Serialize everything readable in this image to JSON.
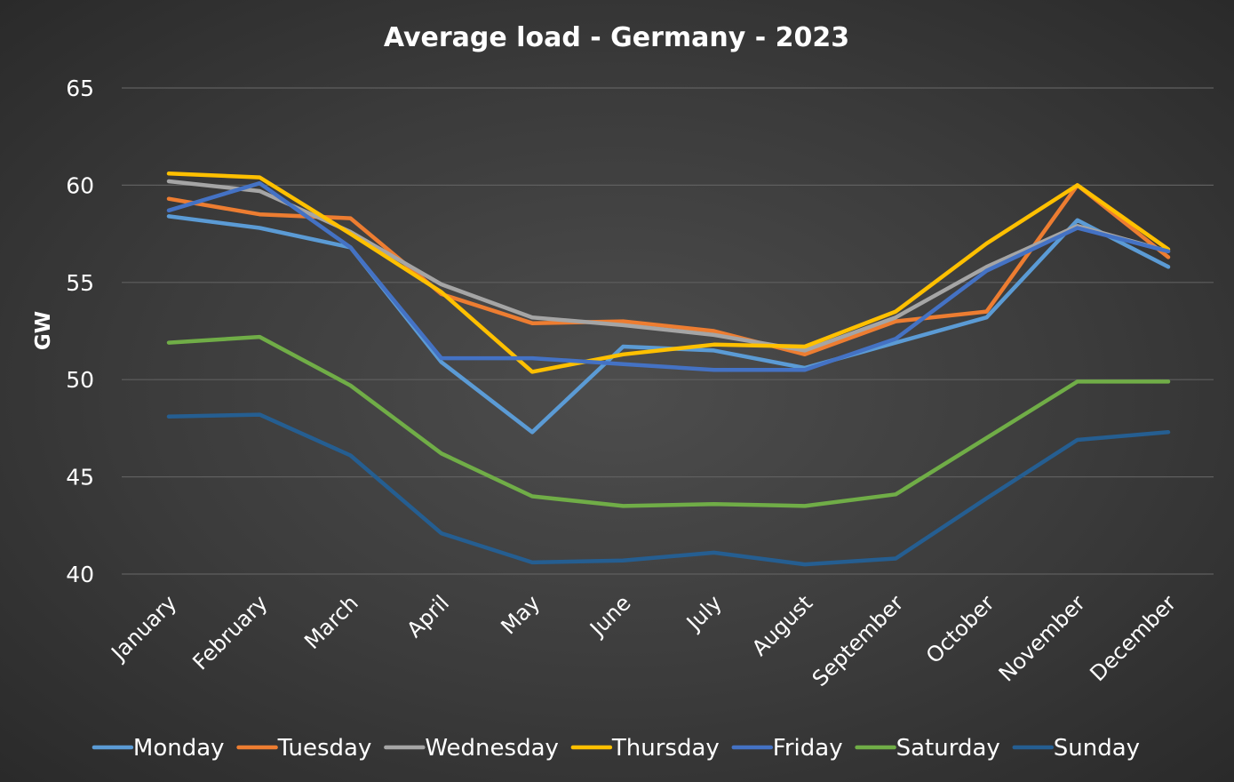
{
  "chart_data": {
    "type": "line",
    "title": "Average load - Germany - 2023",
    "xlabel": "",
    "ylabel": "GW",
    "ylim": [
      40,
      65
    ],
    "yticks": [
      40,
      45,
      50,
      55,
      60,
      65
    ],
    "grid": true,
    "legend_position": "bottom",
    "categories": [
      "January",
      "February",
      "March",
      "April",
      "May",
      "June",
      "July",
      "August",
      "September",
      "October",
      "November",
      "December"
    ],
    "series": [
      {
        "name": "Monday",
        "color": "#5b9bd5",
        "values": [
          58.4,
          57.8,
          56.8,
          50.9,
          47.3,
          51.7,
          51.5,
          50.6,
          51.9,
          53.2,
          58.2,
          55.8
        ]
      },
      {
        "name": "Tuesday",
        "color": "#ed7d31",
        "values": [
          59.3,
          58.5,
          58.3,
          54.4,
          52.9,
          53.0,
          52.5,
          51.3,
          53.0,
          53.5,
          60.0,
          56.3
        ]
      },
      {
        "name": "Wednesday",
        "color": "#a5a5a5",
        "values": [
          60.2,
          59.7,
          57.6,
          54.9,
          53.2,
          52.8,
          52.3,
          51.5,
          53.2,
          55.8,
          57.9,
          56.6
        ]
      },
      {
        "name": "Thursday",
        "color": "#ffc000",
        "values": [
          60.6,
          60.4,
          57.5,
          54.5,
          50.4,
          51.3,
          51.8,
          51.7,
          53.5,
          57.0,
          60.0,
          56.7
        ]
      },
      {
        "name": "Friday",
        "color": "#4472c4",
        "values": [
          58.7,
          60.1,
          56.8,
          51.1,
          51.1,
          50.8,
          50.5,
          50.5,
          52.1,
          55.6,
          57.8,
          56.6
        ]
      },
      {
        "name": "Saturday",
        "color": "#70ad47",
        "values": [
          51.9,
          52.2,
          49.7,
          46.2,
          44.0,
          43.5,
          43.6,
          43.5,
          44.1,
          47.0,
          49.9,
          49.9
        ]
      },
      {
        "name": "Sunday",
        "color": "#255e91",
        "values": [
          48.1,
          48.2,
          46.1,
          42.1,
          40.6,
          40.7,
          41.1,
          40.5,
          40.8,
          43.9,
          46.9,
          47.3
        ]
      }
    ]
  }
}
